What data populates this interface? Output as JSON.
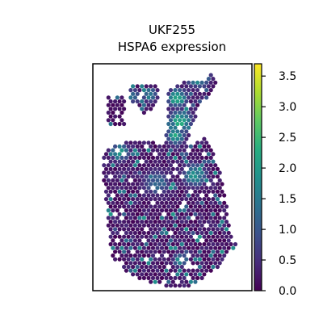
{
  "chart_data": {
    "type": "scatter",
    "title_lines": [
      "UKF255",
      "HSPA6 expression"
    ],
    "xlabel": "",
    "ylabel": "",
    "grid": false,
    "legend": "colorbar-right",
    "colormap": "viridis",
    "color_range": [
      0.0,
      3.7
    ],
    "colorbar_ticks": [
      "0.0",
      "0.5",
      "1.0",
      "1.5",
      "2.0",
      "2.5",
      "3.0",
      "3.5"
    ],
    "colorbar_tick_values": [
      0.0,
      0.5,
      1.0,
      1.5,
      2.0,
      2.5,
      3.0,
      3.5
    ],
    "tissue_regions": [
      {
        "polygon": [
          [
            0.09,
            0.14
          ],
          [
            0.2,
            0.14
          ],
          [
            0.2,
            0.33
          ],
          [
            0.09,
            0.33
          ]
        ],
        "base": 0.3
      },
      {
        "polygon": [
          [
            0.23,
            0.08
          ],
          [
            0.33,
            0.06
          ],
          [
            0.4,
            0.06
          ],
          [
            0.42,
            0.18
          ],
          [
            0.34,
            0.28
          ],
          [
            0.3,
            0.22
          ],
          [
            0.23,
            0.16
          ]
        ],
        "base": 0.4
      },
      {
        "polygon": [
          [
            0.47,
            0.1
          ],
          [
            0.57,
            0.05
          ],
          [
            0.7,
            0.03
          ],
          [
            0.75,
            -0.02
          ],
          [
            0.78,
            0.05
          ],
          [
            0.74,
            0.12
          ],
          [
            0.66,
            0.22
          ],
          [
            0.6,
            0.42
          ],
          [
            0.55,
            0.7
          ],
          [
            0.52,
            0.9
          ],
          [
            0.48,
            0.7
          ],
          [
            0.44,
            0.5
          ],
          [
            0.47,
            0.3
          ]
        ],
        "base": 0.5
      },
      {
        "polygon": [
          [
            0.06,
            0.5
          ],
          [
            0.2,
            0.44
          ],
          [
            0.4,
            0.44
          ],
          [
            0.55,
            0.5
          ],
          [
            0.72,
            0.4
          ],
          [
            0.78,
            0.55
          ],
          [
            0.82,
            0.72
          ],
          [
            0.86,
            0.98
          ],
          [
            0.9,
            1.1
          ],
          [
            0.82,
            1.22
          ],
          [
            0.72,
            1.3
          ],
          [
            0.6,
            1.37
          ],
          [
            0.45,
            1.37
          ],
          [
            0.32,
            1.33
          ],
          [
            0.2,
            1.28
          ],
          [
            0.12,
            1.18
          ],
          [
            0.1,
            1.02
          ],
          [
            0.08,
            0.8
          ],
          [
            0.06,
            0.65
          ]
        ],
        "base": 0.5
      }
    ],
    "hotspots": [
      {
        "x": 0.66,
        "y": 0.0,
        "value": 3.3,
        "spread": 0.05
      },
      {
        "x": 0.53,
        "y": 0.15,
        "value": 2.9,
        "spread": 0.04
      },
      {
        "x": 0.55,
        "y": 0.3,
        "value": 2.8,
        "spread": 0.05
      },
      {
        "x": 0.52,
        "y": 0.4,
        "value": 2.5,
        "spread": 0.04
      },
      {
        "x": 0.17,
        "y": 0.5,
        "value": 2.4,
        "spread": 0.04
      },
      {
        "x": 0.64,
        "y": 0.65,
        "value": 2.4,
        "spread": 0.05
      },
      {
        "x": 0.55,
        "y": 1.2,
        "value": 2.2,
        "spread": 0.03
      },
      {
        "x": 0.25,
        "y": 0.14,
        "value": 2.0,
        "spread": 0.03
      },
      {
        "x": 0.36,
        "y": 0.13,
        "value": 2.2,
        "spread": 0.03
      },
      {
        "x": 0.4,
        "y": 0.7,
        "value": 1.5,
        "spread": 0.06
      }
    ]
  }
}
